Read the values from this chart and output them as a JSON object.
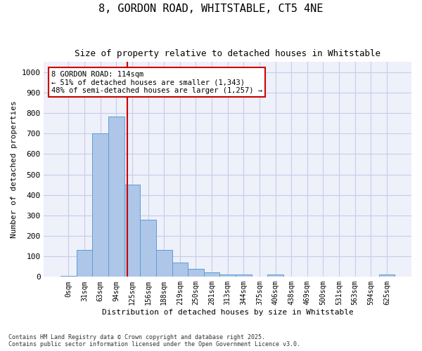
{
  "title_line1": "8, GORDON ROAD, WHITSTABLE, CT5 4NE",
  "title_line2": "Size of property relative to detached houses in Whitstable",
  "xlabel": "Distribution of detached houses by size in Whitstable",
  "ylabel": "Number of detached properties",
  "bar_color": "#aec6e8",
  "bar_edge_color": "#5a9fd4",
  "background_color": "#eef0fa",
  "grid_color": "#c8cce8",
  "annotation_box_color": "#cc0000",
  "vline_color": "#cc0000",
  "categories": [
    "0sqm",
    "31sqm",
    "63sqm",
    "94sqm",
    "125sqm",
    "156sqm",
    "188sqm",
    "219sqm",
    "250sqm",
    "281sqm",
    "313sqm",
    "344sqm",
    "375sqm",
    "406sqm",
    "438sqm",
    "469sqm",
    "500sqm",
    "531sqm",
    "563sqm",
    "594sqm",
    "625sqm"
  ],
  "values": [
    5,
    130,
    700,
    785,
    450,
    278,
    133,
    70,
    40,
    22,
    12,
    12,
    0,
    12,
    0,
    0,
    0,
    0,
    0,
    0,
    10
  ],
  "property_label": "8 GORDON ROAD: 114sqm",
  "pct_detached_smaller": 51,
  "pct_smaller_count": 1343,
  "pct_semi_larger": 48,
  "pct_semi_larger_count": 1257,
  "vline_x_index": 3.67,
  "ylim": [
    0,
    1050
  ],
  "yticks": [
    0,
    100,
    200,
    300,
    400,
    500,
    600,
    700,
    800,
    900,
    1000
  ],
  "footer_line1": "Contains HM Land Registry data © Crown copyright and database right 2025.",
  "footer_line2": "Contains public sector information licensed under the Open Government Licence v3.0."
}
